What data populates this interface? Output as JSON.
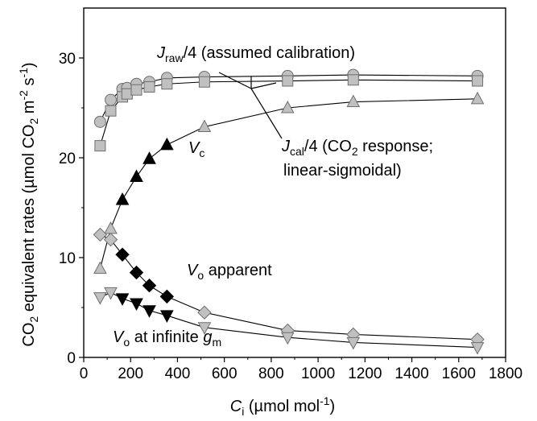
{
  "chart_data": {
    "type": "scatter",
    "xlim": [
      0,
      1800
    ],
    "ylim": [
      0,
      35
    ],
    "xticks": [
      "0",
      "200",
      "400",
      "600",
      "800",
      "1000",
      "1200",
      "1400",
      "1600",
      "1800"
    ],
    "yticks": [
      "0",
      "10",
      "20",
      "30"
    ],
    "grid": false,
    "xlabel": {
      "main": "C",
      "sub": "i",
      "rest": " (µmol mol",
      "sup": "-1",
      "end": ")"
    },
    "ylabel": {
      "p1": "CO",
      "s1": "2",
      "p2": " equivalent rates (µmol CO",
      "s2": "2",
      "p3": " m",
      "sup1": "-2",
      "p4": " s",
      "sup2": "-1",
      "p5": ")"
    },
    "annotations": {
      "jraw": {
        "main": "J",
        "sub": "raw",
        "rest": "/4 (assumed calibration)"
      },
      "jcal": {
        "main": "J",
        "sub": "cal",
        "rest": "/4 (CO",
        "sub2": "2",
        "rest2": " response;",
        "line2": "linear-sigmoidal)"
      },
      "vc": {
        "main": "V",
        "sub": "c"
      },
      "vo_apparent": {
        "main": "V",
        "sub": "o",
        "rest": " apparent"
      },
      "vo_infinite": {
        "main": "V",
        "sub": "o",
        "rest": " at infinite ",
        "main2": "g",
        "sub2": "m"
      }
    },
    "series": [
      {
        "marker": "circle",
        "fill": "#c0c0c0",
        "x": [
          70,
          115,
          165,
          185,
          225,
          280,
          355,
          515,
          870,
          1150,
          1680
        ],
        "y": [
          23.6,
          25.8,
          26.9,
          27.0,
          27.4,
          27.6,
          28.0,
          28.1,
          28.2,
          28.3,
          28.2
        ]
      },
      {
        "marker": "square",
        "fill": "#c0c0c0",
        "x": [
          70,
          115,
          165,
          185,
          225,
          280,
          355,
          515,
          870,
          1150,
          1680
        ],
        "y": [
          21.2,
          24.7,
          26.1,
          26.4,
          26.8,
          27.1,
          27.4,
          27.6,
          27.7,
          27.8,
          27.7
        ]
      },
      {
        "marker": "triangle-up",
        "fill": "#c0c0c0",
        "x": [
          70,
          115,
          515,
          870,
          1150,
          1680
        ],
        "y": [
          8.9,
          12.9,
          23.1,
          25.0,
          25.6,
          25.9
        ]
      },
      {
        "marker": "triangle-up",
        "fill": "#000000",
        "x": [
          165,
          225,
          280,
          355
        ],
        "y": [
          15.8,
          18.1,
          19.9,
          21.3
        ]
      },
      {
        "marker": "diamond",
        "fill": "#c0c0c0",
        "x": [
          70,
          115,
          515,
          870,
          1150,
          1680
        ],
        "y": [
          12.3,
          11.8,
          4.5,
          2.7,
          2.3,
          1.8
        ]
      },
      {
        "marker": "diamond",
        "fill": "#000000",
        "x": [
          165,
          225,
          280,
          355
        ],
        "y": [
          10.3,
          8.5,
          7.2,
          6.1
        ]
      },
      {
        "marker": "triangle-down",
        "fill": "#c0c0c0",
        "x": [
          70,
          115,
          515,
          870,
          1150,
          1680
        ],
        "y": [
          6.0,
          6.5,
          3.0,
          2.0,
          1.5,
          1.0
        ]
      },
      {
        "marker": "triangle-down",
        "fill": "#000000",
        "x": [
          165,
          225,
          280,
          355
        ],
        "y": [
          5.9,
          5.4,
          4.7,
          4.2
        ]
      }
    ],
    "lines": [
      {
        "x": [
          70,
          115,
          165,
          185,
          225,
          280,
          355,
          515,
          870,
          1150,
          1680
        ],
        "y": [
          23.6,
          25.8,
          26.9,
          27.0,
          27.4,
          27.6,
          28.0,
          28.1,
          28.2,
          28.3,
          28.2
        ]
      },
      {
        "x": [
          70,
          115,
          165,
          185,
          225,
          280,
          355,
          515,
          870,
          1150,
          1680
        ],
        "y": [
          21.2,
          24.7,
          26.1,
          26.4,
          26.8,
          27.1,
          27.4,
          27.6,
          27.7,
          27.8,
          27.7
        ]
      },
      {
        "x": [
          70,
          115,
          165,
          225,
          280,
          355,
          515,
          870,
          1150,
          1680
        ],
        "y": [
          8.9,
          12.9,
          15.8,
          18.1,
          19.9,
          21.3,
          23.1,
          25.0,
          25.6,
          25.9
        ]
      },
      {
        "x": [
          70,
          115,
          165,
          225,
          280,
          355,
          515,
          870,
          1150,
          1680
        ],
        "y": [
          12.3,
          11.8,
          10.3,
          8.5,
          7.2,
          6.1,
          4.5,
          2.7,
          2.3,
          1.8
        ]
      },
      {
        "x": [
          70,
          115,
          165,
          225,
          280,
          355,
          515,
          870,
          1150,
          1680
        ],
        "y": [
          6.0,
          6.5,
          5.9,
          5.4,
          4.7,
          4.2,
          3.0,
          2.0,
          1.5,
          1.0
        ]
      }
    ]
  }
}
